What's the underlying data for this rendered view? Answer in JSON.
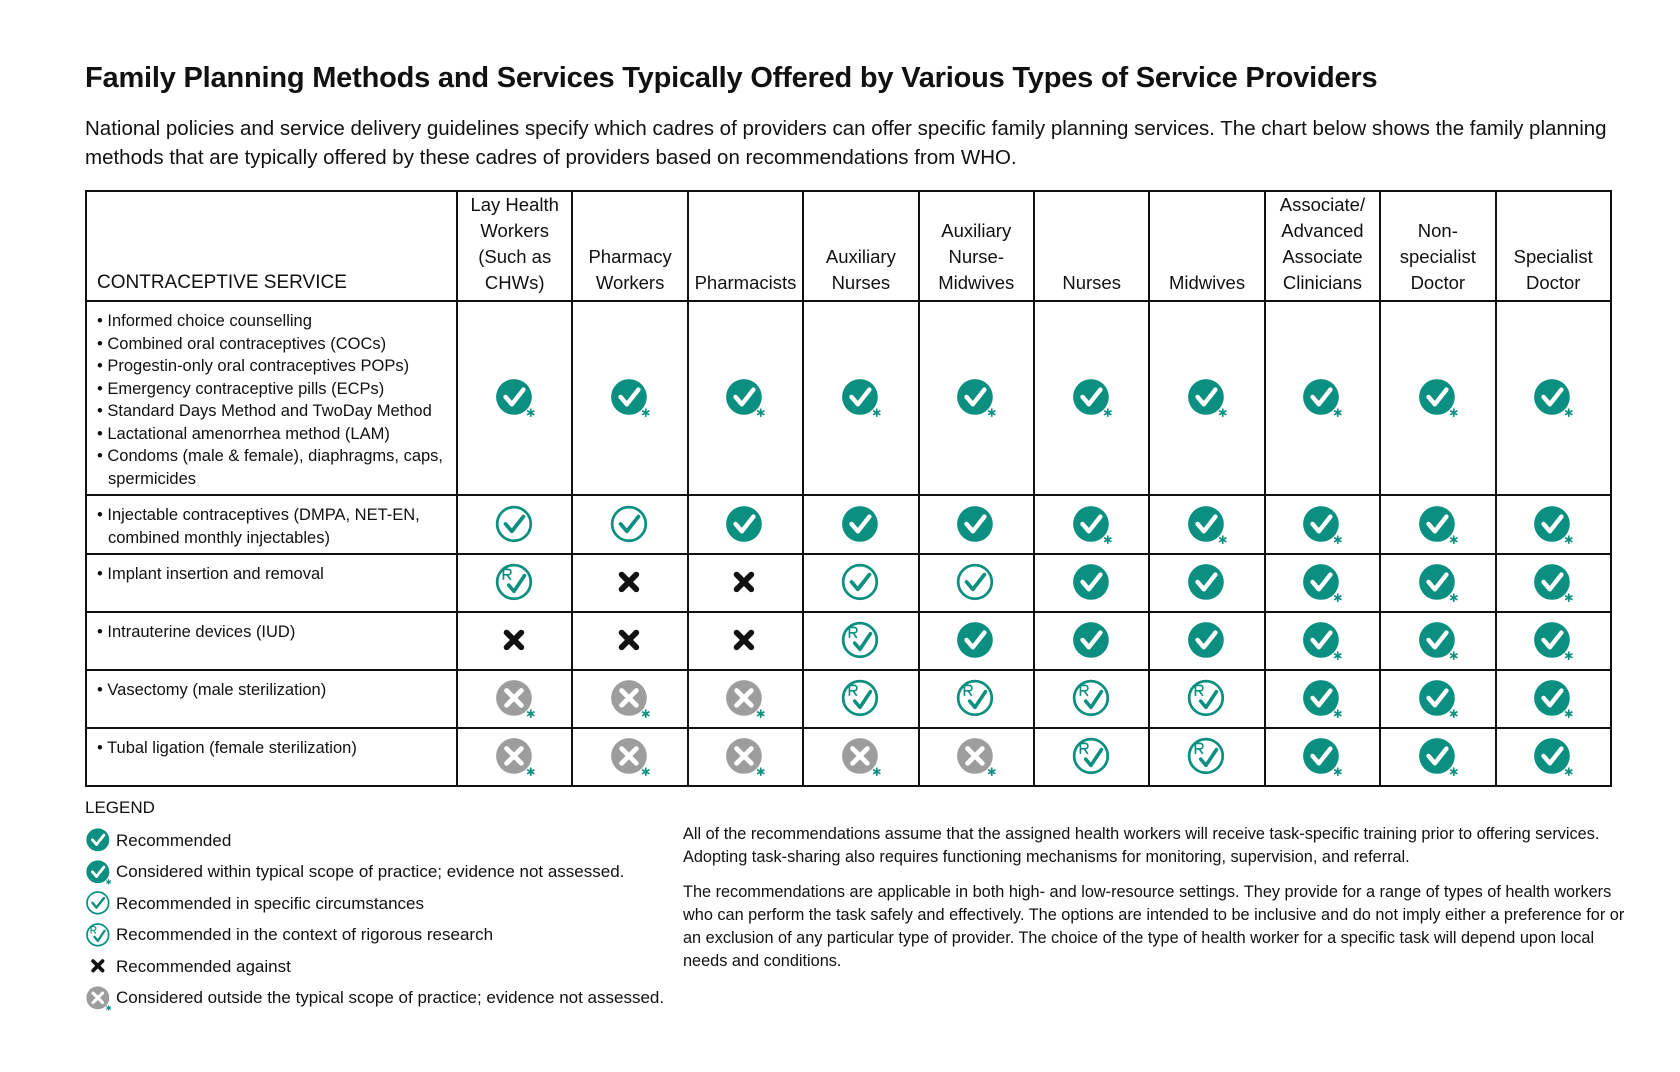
{
  "header": {
    "title": "Family Planning Methods and Services Typically Offered by Various Types of Service Providers",
    "subtitle": "National policies and service delivery guidelines specify which cadres of providers can offer specific family planning services. The chart below shows the family planning methods that are typically offered by these cadres of providers based on recommendations from WHO."
  },
  "table": {
    "first_header": "CONTRACEPTIVE SERVICE",
    "columns": [
      [
        "Lay Health",
        "Workers",
        "(Such as",
        "CHWs)"
      ],
      [
        "Pharmacy",
        "Workers"
      ],
      [
        "Pharmacists"
      ],
      [
        "Auxiliary",
        "Nurses"
      ],
      [
        "Auxiliary",
        "Nurse-",
        "Midwives"
      ],
      [
        "Nurses"
      ],
      [
        "Midwives"
      ],
      [
        "Associate/",
        "Advanced",
        "Associate",
        "Clinicians"
      ],
      [
        "Non-",
        "specialist",
        "Doctor"
      ],
      [
        "Specialist",
        "Doctor"
      ]
    ],
    "rows": [
      {
        "services": [
          "Informed choice counselling",
          "Combined oral contraceptives (COCs)",
          "Progestin-only oral contraceptives POPs)",
          "Emergency contraceptive pills (ECPs)",
          "Standard Days Method and TwoDay Method",
          "Lactational amenorrhea method (LAM)",
          "Condoms (male & female), diaphragms, caps, spermicides"
        ],
        "cells": [
          1,
          1,
          1,
          1,
          1,
          1,
          1,
          1,
          1,
          1
        ]
      },
      {
        "services": [
          "Injectable contraceptives (DMPA, NET-EN, combined monthly injectables)"
        ],
        "cells": [
          2,
          2,
          0,
          0,
          0,
          1,
          1,
          1,
          1,
          1
        ]
      },
      {
        "services": [
          "Implant insertion and removal"
        ],
        "cells": [
          3,
          4,
          4,
          2,
          2,
          0,
          0,
          1,
          1,
          1
        ]
      },
      {
        "services": [
          "Intrauterine devices (IUD)"
        ],
        "cells": [
          4,
          4,
          4,
          3,
          0,
          0,
          0,
          1,
          1,
          1
        ]
      },
      {
        "services": [
          "Vasectomy (male sterilization)"
        ],
        "cells": [
          5,
          5,
          5,
          3,
          3,
          3,
          3,
          1,
          1,
          1
        ]
      },
      {
        "services": [
          "Tubal ligation (female sterilization)"
        ],
        "cells": [
          5,
          5,
          5,
          5,
          5,
          3,
          3,
          1,
          1,
          1
        ]
      }
    ]
  },
  "legend": {
    "title": "LEGEND",
    "items": [
      "Recommended",
      "Considered within typical scope of practice; evidence not assessed.",
      "Recommended in specific circumstances",
      "Recommended in the context of rigorous research",
      "Recommended against",
      "Considered outside the typical scope of practice; evidence not assessed."
    ]
  },
  "notes": [
    "All of the recommendations assume that the assigned health workers will receive task-specific training prior to offering services. Adopting task-sharing also requires functioning mechanisms for monitoring, supervision, and referral.",
    "The recommendations are applicable in both high- and low-resource settings. They provide for a range of types of health workers who can perform the task safely and effectively. The options are intended to be inclusive and do not imply either a preference for or an exclusion of any particular type of provider. The choice of the type of health worker for a specific task will depend upon local needs and conditions."
  ]
}
